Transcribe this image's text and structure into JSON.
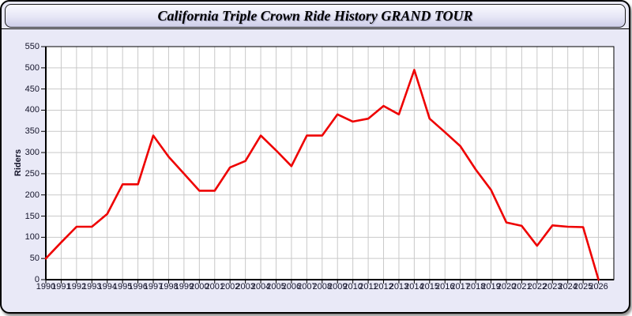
{
  "window": {
    "title": "California Triple Crown Ride History GRAND TOUR"
  },
  "chart_data": {
    "type": "line",
    "title": "California Triple Crown Ride History GRAND TOUR",
    "xlabel": "",
    "ylabel": "Riders",
    "x": [
      1990,
      1991,
      1992,
      1993,
      1994,
      1995,
      1996,
      1997,
      1998,
      1999,
      2000,
      2001,
      2002,
      2003,
      2004,
      2005,
      2006,
      2007,
      2008,
      2009,
      2010,
      2011,
      2012,
      2013,
      2014,
      2015,
      2016,
      2017,
      2018,
      2019,
      2020,
      2021,
      2022,
      2023,
      2024,
      2025,
      2026
    ],
    "series": [
      {
        "name": "Riders",
        "values": [
          50,
          88,
          125,
          125,
          155,
          225,
          225,
          340,
          290,
          250,
          210,
          210,
          265,
          280,
          340,
          305,
          268,
          340,
          340,
          390,
          373,
          380,
          410,
          390,
          495,
          380,
          348,
          315,
          260,
          212,
          135,
          127,
          80,
          128,
          125,
          124,
          0
        ]
      }
    ],
    "ylim": [
      0,
      550
    ],
    "ytick_step": 50,
    "xlim": [
      1990,
      2027
    ],
    "grid": true,
    "legend": "none"
  },
  "colors": {
    "line": "#ee0000",
    "grid": "#c9c9c9",
    "plot_bg": "#ffffff",
    "panel_bg": "#e9e9f7",
    "titlebar_top": "#fafaff",
    "titlebar_bottom": "#cdcde8",
    "border": "#000000",
    "axis": "#000000",
    "text": "#14142a"
  }
}
